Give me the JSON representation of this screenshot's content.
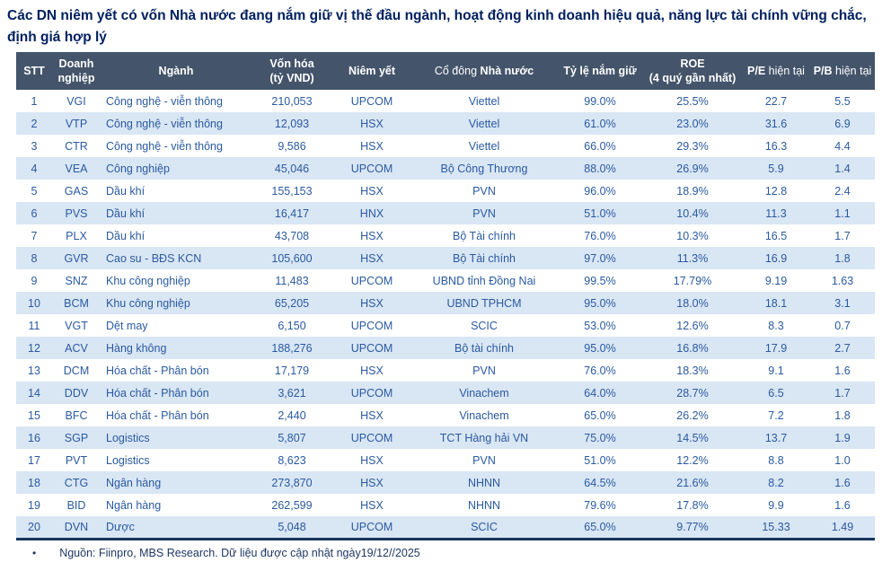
{
  "title": "Các DN niêm yết có vốn Nhà nước đang nắm giữ vị thế đầu ngành, hoạt động kinh doanh hiệu quả, năng lực tài chính vững chắc, định giá hợp lý",
  "colors": {
    "title_text": "#002060",
    "header_bg": "#44546A",
    "header_text": "#FFFFFF",
    "body_text": "#2A5AA0",
    "row_stripe": "#D9E6F4",
    "table_bottom_border": "#17365D",
    "footnote_text": "#1F3864"
  },
  "table": {
    "col_names": [
      "stt",
      "ticker",
      "industry",
      "market-cap",
      "exchange",
      "state-shareholder",
      "ownership-ratio",
      "roe",
      "pe",
      "pb"
    ],
    "headers": [
      {
        "segments": [
          {
            "t": "STT",
            "b": true
          }
        ]
      },
      {
        "segments": [
          {
            "t": "Doanh\nnghiệp",
            "b": true
          }
        ]
      },
      {
        "segments": [
          {
            "t": "Ngành",
            "b": true
          }
        ]
      },
      {
        "segments": [
          {
            "t": "Vốn hóa\n(tỷ VND)",
            "b": true
          }
        ]
      },
      {
        "segments": [
          {
            "t": "Niêm yết",
            "b": true
          }
        ]
      },
      {
        "segments": [
          {
            "t": "Cổ đông ",
            "b": false
          },
          {
            "t": "Nhà nước",
            "b": true
          }
        ]
      },
      {
        "segments": [
          {
            "t": "Tỷ lệ nắm giữ",
            "b": true
          }
        ]
      },
      {
        "segments": [
          {
            "t": "ROE\n(4 quý gần nhất)",
            "b": true
          }
        ]
      },
      {
        "segments": [
          {
            "t": "P/E ",
            "b": true
          },
          {
            "t": "hiện tại",
            "b": false
          }
        ]
      },
      {
        "segments": [
          {
            "t": "P/B ",
            "b": true
          },
          {
            "t": "hiện tại",
            "b": false
          }
        ]
      }
    ],
    "rows": [
      [
        "1",
        "VGI",
        "Công nghệ - viễn thông",
        "210,053",
        "UPCOM",
        "Viettel",
        "99.0%",
        "25.5%",
        "22.7",
        "5.5"
      ],
      [
        "2",
        "VTP",
        "Công nghệ - viễn thông",
        "12,093",
        "HSX",
        "Viettel",
        "61.0%",
        "23.0%",
        "31.6",
        "6.9"
      ],
      [
        "3",
        "CTR",
        "Công nghệ - viễn thông",
        "9,586",
        "HSX",
        "Viettel",
        "66.0%",
        "29.3%",
        "16.3",
        "4.4"
      ],
      [
        "4",
        "VEA",
        "Công nghiệp",
        "45,046",
        "UPCOM",
        "Bộ Công Thương",
        "88.0%",
        "26.9%",
        "5.9",
        "1.4"
      ],
      [
        "5",
        "GAS",
        "Dầu khí",
        "155,153",
        "HSX",
        "PVN",
        "96.0%",
        "18.9%",
        "12.8",
        "2.4"
      ],
      [
        "6",
        "PVS",
        "Dầu khí",
        "16,417",
        "HNX",
        "PVN",
        "51.0%",
        "10.4%",
        "11.3",
        "1.1"
      ],
      [
        "7",
        "PLX",
        "Dầu khí",
        "43,708",
        "HSX",
        "Bộ Tài chính",
        "76.0%",
        "10.3%",
        "16.5",
        "1.7"
      ],
      [
        "8",
        "GVR",
        "Cao su - BĐS KCN",
        "105,600",
        "HSX",
        "Bộ Tài chính",
        "97.0%",
        "11.3%",
        "16.9",
        "1.8"
      ],
      [
        "9",
        "SNZ",
        "Khu công nghiệp",
        "11,483",
        "UPCOM",
        "UBND tỉnh Đồng Nai",
        "99.5%",
        "17.79%",
        "9.19",
        "1.63"
      ],
      [
        "10",
        "BCM",
        "Khu công nghiệp",
        "65,205",
        "HSX",
        "UBND TPHCM",
        "95.0%",
        "18.0%",
        "18.1",
        "3.1"
      ],
      [
        "11",
        "VGT",
        "Dệt may",
        "6,150",
        "UPCOM",
        "SCIC",
        "53.0%",
        "12.6%",
        "8.3",
        "0.7"
      ],
      [
        "12",
        "ACV",
        "Hàng không",
        "188,276",
        "UPCOM",
        "Bộ tài chính",
        "95.0%",
        "16.8%",
        "17.9",
        "2.7"
      ],
      [
        "13",
        "DCM",
        "Hóa chất - Phân bón",
        "17,179",
        "HSX",
        "PVN",
        "76.0%",
        "18.3%",
        "9.1",
        "1.6"
      ],
      [
        "14",
        "DDV",
        "Hóa chất - Phân bón",
        "3,621",
        "UPCOM",
        "Vinachem",
        "64.0%",
        "28.7%",
        "6.5",
        "1.7"
      ],
      [
        "15",
        "BFC",
        "Hóa chất - Phân bón",
        "2,440",
        "HSX",
        "Vinachem",
        "65.0%",
        "26.2%",
        "7.2",
        "1.8"
      ],
      [
        "16",
        "SGP",
        "Logistics",
        "5,807",
        "UPCOM",
        "TCT Hàng hải VN",
        "75.0%",
        "14.5%",
        "13.7",
        "1.9"
      ],
      [
        "17",
        "PVT",
        "Logistics",
        "8,623",
        "HSX",
        "PVN",
        "51.0%",
        "12.2%",
        "8.8",
        "1.0"
      ],
      [
        "18",
        "CTG",
        "Ngân hàng",
        "273,870",
        "HSX",
        "NHNN",
        "64.5%",
        "21.6%",
        "8.2",
        "1.6"
      ],
      [
        "19",
        "BID",
        "Ngân hàng",
        "262,599",
        "HSX",
        "NHNN",
        "79.6%",
        "17.8%",
        "9.9",
        "1.6"
      ],
      [
        "20",
        "DVN",
        "Dược",
        "5,048",
        "UPCOM",
        "SCIC",
        "65.0%",
        "9.77%",
        "15.33",
        "1.49"
      ]
    ]
  },
  "footnote": {
    "bullet": "•",
    "text": "Nguồn: Fiinpro, MBS Research. Dữ liệu được cập nhật ngày19/12//2025"
  }
}
